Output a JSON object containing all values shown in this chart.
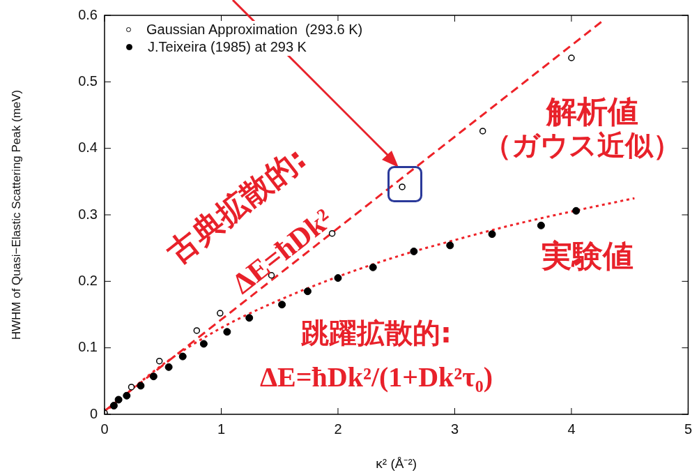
{
  "chart_data": {
    "type": "scatter",
    "xlabel": "κ² (Å⁻²)",
    "ylabel": "HWHM of Quasi−Elastic Scattering Peak (meV)",
    "xlim": [
      0,
      5
    ],
    "ylim": [
      0,
      0.6
    ],
    "xticks": [
      0,
      1,
      2,
      3,
      4,
      5
    ],
    "yticks": [
      0,
      0.1,
      0.2,
      0.3,
      0.4,
      0.5,
      0.6
    ],
    "grid": false,
    "legend": "top left",
    "marker": "circle",
    "series": [
      {
        "name": "Gaussian Approximation  (293.6 K)",
        "color": "#000000",
        "x": [
          0,
          0.23,
          0.47,
          0.79,
          0.99,
          1.43,
          1.95,
          2.55,
          3.24,
          4.0
        ],
        "values": [
          0.002,
          0.041,
          0.08,
          0.126,
          0.152,
          0.209,
          0.272,
          0.342,
          0.426,
          0.536
        ]
      },
      {
        "name": "J.Teixeira (1985) at 293 K",
        "color": "#000000",
        "x": [
          0.08,
          0.12,
          0.19,
          0.31,
          0.42,
          0.55,
          0.67,
          0.85,
          1.05,
          1.24,
          1.52,
          1.74,
          2.0,
          2.3,
          2.65,
          2.96,
          3.32,
          3.74,
          4.04
        ],
        "values": [
          0.013,
          0.022,
          0.028,
          0.043,
          0.057,
          0.071,
          0.087,
          0.106,
          0.124,
          0.145,
          0.165,
          0.185,
          0.205,
          0.221,
          0.245,
          0.254,
          0.271,
          0.284,
          0.306
        ]
      },
      {
        "type": "line",
        "color": "#ee2228",
        "line_style": "dashed",
        "marker": "none",
        "x": [
          0,
          4.27
        ],
        "values": [
          0.005,
          0.592
        ]
      },
      {
        "type": "line",
        "color": "#ee2228",
        "line_style": "dotted",
        "marker": "none",
        "x": [
          0,
          0.5,
          1,
          1.5,
          2,
          2.5,
          3,
          3.5,
          4,
          4.54
        ],
        "values": [
          0.003,
          0.075,
          0.13,
          0.172,
          0.207,
          0.237,
          0.262,
          0.285,
          0.305,
          0.325
        ]
      }
    ],
    "annotations": [
      "解析値",
      "（ガウス近似）",
      "古典拡散的:",
      "ΔE=ħDk²",
      "実験値",
      "跳躍拡散的:",
      "ΔE=ħDk²/(1+Dk²τ₀)"
    ]
  }
}
